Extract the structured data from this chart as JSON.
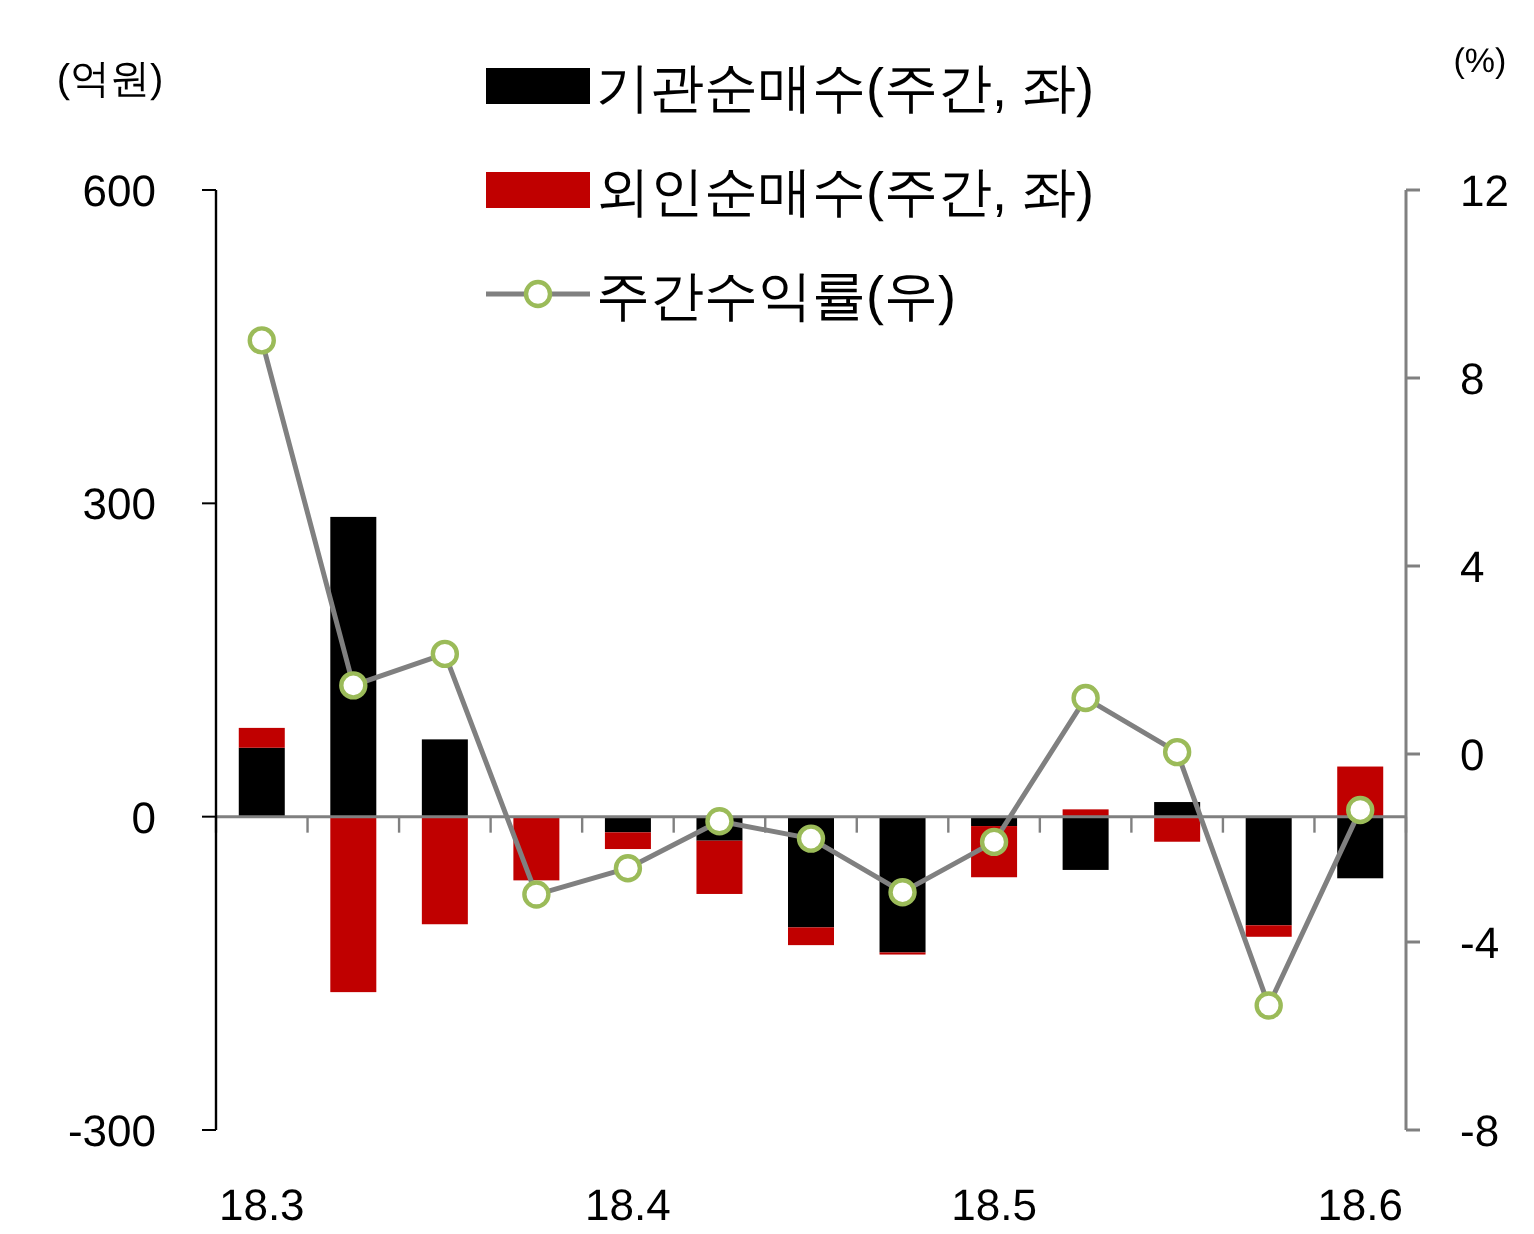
{
  "chart_data": {
    "type": "bar",
    "stacked": true,
    "ylabel": "(억원)",
    "y2label": "(%)",
    "categories": [
      "18.3",
      null,
      null,
      null,
      "18.4",
      null,
      null,
      null,
      "18.5",
      null,
      null,
      null,
      "18.6"
    ],
    "ylim": [
      -300,
      600
    ],
    "yticks": [
      -300,
      0,
      300,
      600
    ],
    "y2lim": [
      -8,
      12
    ],
    "y2ticks": [
      -8,
      -4,
      0,
      4,
      8,
      12
    ],
    "legend": "top",
    "series": [
      {
        "name": "기관순매수(주간, 좌)",
        "color": "#000000",
        "values": [
          66,
          287,
          74,
          0,
          -15,
          -23,
          -106,
          -130,
          -9,
          -51,
          14,
          -104,
          -59
        ]
      },
      {
        "name": "외인순매수(주간, 좌)",
        "color": "#c00000",
        "values": [
          19,
          -168,
          -103,
          -61,
          -16,
          -51,
          -17,
          -2,
          -49,
          7,
          -24,
          -11,
          48
        ]
      },
      {
        "name": "주간수익률(우)",
        "type": "line",
        "axis": "y2",
        "marker": "circle",
        "line_style": "solid",
        "color": "#808080",
        "values": [
          8.8,
          1.46,
          2.13,
          -2.99,
          -2.43,
          -1.43,
          -1.8,
          -2.94,
          -1.87,
          1.19,
          0.04,
          -5.35,
          -1.19
        ]
      }
    ]
  }
}
